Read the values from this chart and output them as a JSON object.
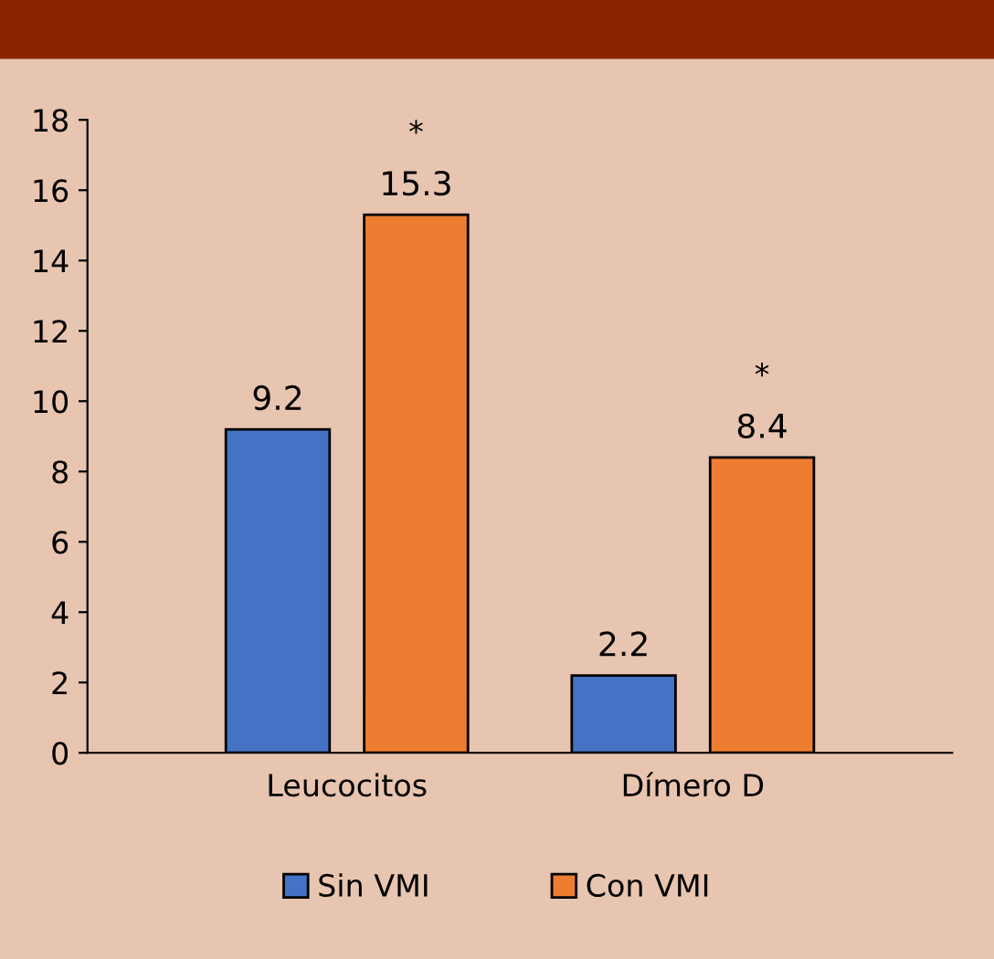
{
  "chart_data": {
    "type": "bar",
    "categories": [
      "Leucocitos",
      "Dímero D"
    ],
    "series": [
      {
        "name": "Sin VMI",
        "color": "#4472c4",
        "values": [
          9.2,
          2.2
        ]
      },
      {
        "name": "Con VMI",
        "color": "#ed7d31",
        "values": [
          15.3,
          8.4
        ]
      }
    ],
    "ylim": [
      0,
      18
    ],
    "yticks": [
      0,
      2,
      4,
      6,
      8,
      10,
      12,
      14,
      16,
      18
    ],
    "data_labels": true,
    "legend": "bottom",
    "grid": false,
    "annotations": [
      "*",
      "*"
    ]
  }
}
